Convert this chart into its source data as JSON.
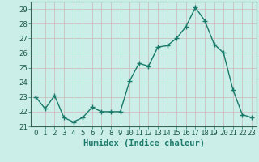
{
  "x": [
    0,
    1,
    2,
    3,
    4,
    5,
    6,
    7,
    8,
    9,
    10,
    11,
    12,
    13,
    14,
    15,
    16,
    17,
    18,
    19,
    20,
    21,
    22,
    23
  ],
  "y": [
    23.0,
    22.2,
    23.1,
    21.6,
    21.3,
    21.6,
    22.3,
    22.0,
    22.0,
    22.0,
    24.1,
    25.3,
    25.1,
    26.4,
    26.5,
    27.0,
    27.8,
    29.1,
    28.2,
    26.6,
    26.0,
    23.5,
    21.8,
    21.6
  ],
  "line_color": "#1a7a6a",
  "marker": "+",
  "marker_size": 4,
  "marker_color": "#1a7a6a",
  "bg_color": "#cceee8",
  "grid_color": "#c8b8b8",
  "xlabel": "Humidex (Indice chaleur)",
  "ylim": [
    21,
    29.5
  ],
  "xlim": [
    -0.5,
    23.5
  ],
  "yticks": [
    21,
    22,
    23,
    24,
    25,
    26,
    27,
    28,
    29
  ],
  "xticks": [
    0,
    1,
    2,
    3,
    4,
    5,
    6,
    7,
    8,
    9,
    10,
    11,
    12,
    13,
    14,
    15,
    16,
    17,
    18,
    19,
    20,
    21,
    22,
    23
  ],
  "tick_label_fontsize": 6.5,
  "xlabel_fontsize": 7.5,
  "line_width": 1.0
}
